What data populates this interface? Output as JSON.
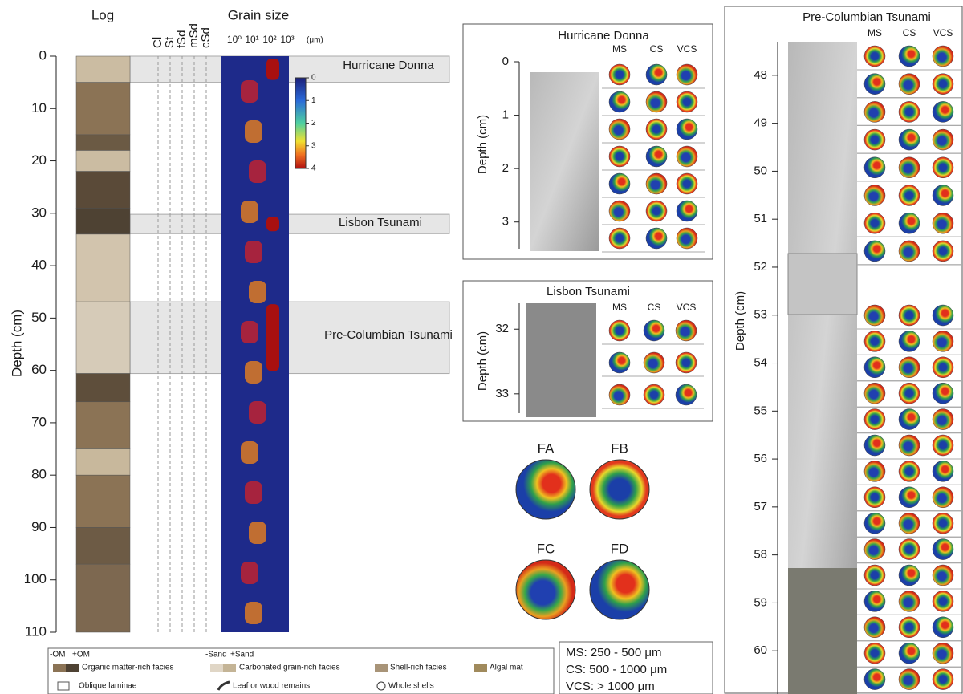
{
  "log_panel": {
    "log_title": "Log",
    "grain_title": "Grain size",
    "y_label": "Depth (cm)",
    "ylim": [
      0,
      110
    ],
    "yticks": [
      0,
      10,
      20,
      30,
      40,
      50,
      60,
      70,
      80,
      90,
      100,
      110
    ],
    "texture_labels": [
      "Cl",
      "St",
      "fSd",
      "mSd",
      "cSd"
    ],
    "grain_ticks": [
      "10⁰",
      "10¹",
      "10²",
      "10³"
    ],
    "grain_unit": "(μm)",
    "colorbar_title": "(%)",
    "colorbar_ticks": [
      0,
      1,
      2,
      3,
      4
    ],
    "events": [
      {
        "label": "Hurricane Donna",
        "top": 0,
        "bottom": 5
      },
      {
        "label": "Lisbon Tsunami",
        "top": 30.2,
        "bottom": 33.9
      },
      {
        "label": "Pre-Columbian Tsunami",
        "top": 46.9,
        "bottom": 60.6
      }
    ],
    "log_units": [
      {
        "top": 0,
        "bottom": 5,
        "color": "#cbbca2"
      },
      {
        "top": 5,
        "bottom": 15,
        "color": "#8b7355"
      },
      {
        "top": 15,
        "bottom": 18,
        "color": "#6b5a44"
      },
      {
        "top": 18,
        "bottom": 22,
        "color": "#cbbca2"
      },
      {
        "top": 22,
        "bottom": 29,
        "color": "#5a4a38"
      },
      {
        "top": 29,
        "bottom": 34,
        "color": "#4e4233"
      },
      {
        "top": 34,
        "bottom": 46.9,
        "color": "#d2c4ad"
      },
      {
        "top": 46.9,
        "bottom": 60.6,
        "color": "#d6cbb8"
      },
      {
        "top": 60.6,
        "bottom": 66,
        "color": "#5e4e3b"
      },
      {
        "top": 66,
        "bottom": 75,
        "color": "#8b7355"
      },
      {
        "top": 75,
        "bottom": 80,
        "color": "#c8b89c"
      },
      {
        "top": 80,
        "bottom": 90,
        "color": "#8b7355"
      },
      {
        "top": 90,
        "bottom": 97,
        "color": "#6d5b45"
      },
      {
        "top": 97,
        "bottom": 110,
        "color": "#7d6850"
      }
    ]
  },
  "hurricane_panel": {
    "title": "Hurricane Donna",
    "y_label": "Depth (cm)",
    "ylim": [
      0,
      3.5
    ],
    "yticks": [
      0,
      1,
      2,
      3
    ],
    "columns": [
      "MS",
      "CS",
      "VCS"
    ]
  },
  "lisbon_panel": {
    "title": "Lisbon Tsunami",
    "y_label": "Depth (cm)",
    "ylim": [
      31.6,
      33.3
    ],
    "yticks": [
      32,
      33
    ],
    "columns": [
      "MS",
      "CS",
      "VCS"
    ]
  },
  "precolumbian_panel": {
    "title": "Pre-Columbian Tsunami",
    "y_label": "Depth (cm)",
    "ylim": [
      47.3,
      60.9
    ],
    "yticks": [
      48,
      49,
      50,
      51,
      52,
      53,
      54,
      55,
      56,
      57,
      58,
      59,
      60
    ],
    "columns": [
      "MS",
      "CS",
      "VCS"
    ]
  },
  "facies": [
    "FA",
    "FB",
    "FC",
    "FD"
  ],
  "legend": {
    "om_minus": "-OM",
    "om_plus": "+OM",
    "sand_minus": "-Sand",
    "sand_plus": "+Sand",
    "items": [
      "Organic matter-rich facies",
      "Carbonated grain-rich facies",
      "Shell-rich facies",
      "Algal mat",
      "Oblique laminae",
      "Leaf or wood remains",
      "Whole shells"
    ]
  },
  "size_key": [
    "MS: 250 - 500 μm",
    "CS: 500 - 1000 μm",
    "VCS: > 1000 μm"
  ]
}
